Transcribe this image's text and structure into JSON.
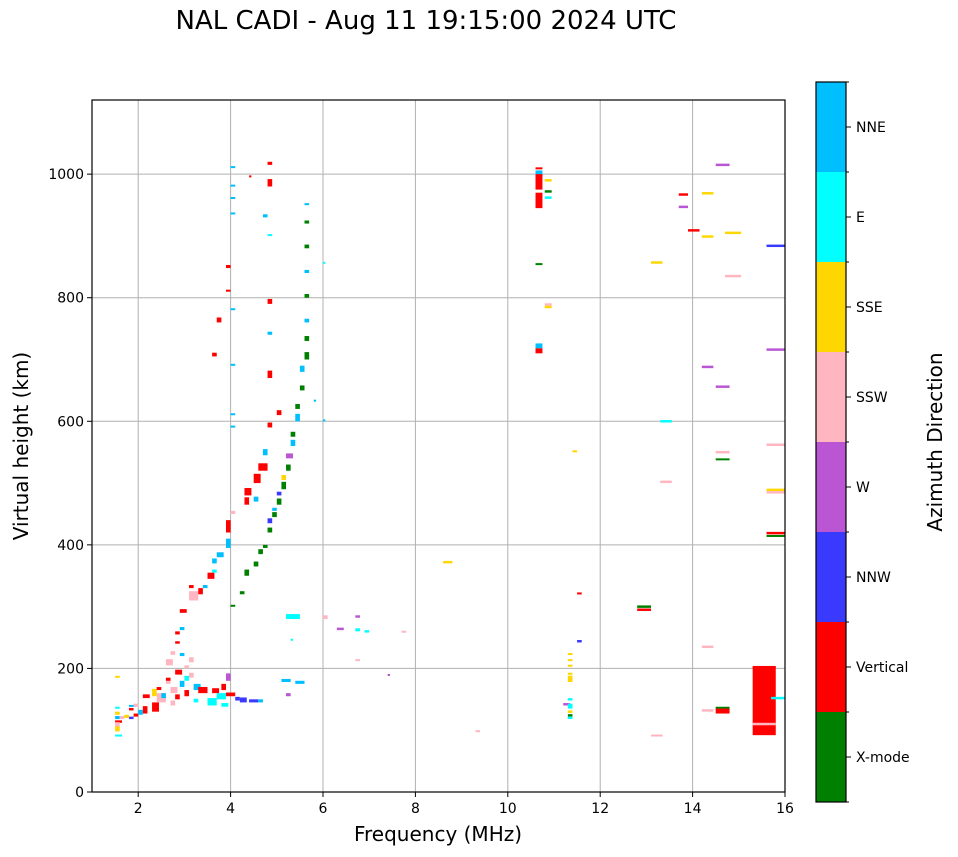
{
  "chart_data": {
    "type": "scatter",
    "title": "NAL CADI - Aug 11 19:15:00 2024 UTC",
    "xlabel": "Frequency (MHz)",
    "ylabel": "Virtual height (km)",
    "xlim": [
      1,
      16
    ],
    "ylim": [
      0,
      1120
    ],
    "xticks": [
      2,
      4,
      6,
      8,
      10,
      12,
      14,
      16
    ],
    "yticks": [
      0,
      200,
      400,
      600,
      800,
      1000
    ],
    "grid": true,
    "colorbar": {
      "label": "Azimuth Direction",
      "placement": "right",
      "categories": [
        {
          "name": "X-mode",
          "color": "#008000"
        },
        {
          "name": "Vertical",
          "color": "#ff0000"
        },
        {
          "name": "NNW",
          "color": "#3a3aff"
        },
        {
          "name": "W",
          "color": "#ba55d3"
        },
        {
          "name": "SSW",
          "color": "#ffb6c1"
        },
        {
          "name": "SSE",
          "color": "#ffd700"
        },
        {
          "name": "E",
          "color": "#00ffff"
        },
        {
          "name": "NNE",
          "color": "#00bfff"
        }
      ]
    },
    "point_fields": [
      "frequency_mhz",
      "freq_width_mhz",
      "virtual_height_km",
      "height_span_km",
      "direction"
    ],
    "points": [
      [
        1.5,
        0.1,
        185,
        3,
        "SSE"
      ],
      [
        1.5,
        0.1,
        135,
        3,
        "E"
      ],
      [
        1.5,
        0.1,
        125,
        5,
        "SSE"
      ],
      [
        1.5,
        0.1,
        118,
        5,
        "NNE"
      ],
      [
        1.5,
        0.15,
        112,
        4,
        "Vertical"
      ],
      [
        1.5,
        0.1,
        105,
        8,
        "SSW"
      ],
      [
        1.5,
        0.1,
        98,
        8,
        "SSE"
      ],
      [
        1.5,
        0.15,
        90,
        3,
        "E"
      ],
      [
        1.6,
        0.1,
        118,
        5,
        "SSW"
      ],
      [
        1.7,
        0.1,
        120,
        5,
        "SSE"
      ],
      [
        1.8,
        0.15,
        138,
        3,
        "NNE"
      ],
      [
        1.8,
        0.1,
        132,
        4,
        "Vertical"
      ],
      [
        1.8,
        0.1,
        118,
        4,
        "NNW"
      ],
      [
        1.9,
        0.1,
        122,
        5,
        "Vertical"
      ],
      [
        1.9,
        0.1,
        138,
        5,
        "SSW"
      ],
      [
        2.0,
        0.1,
        125,
        8,
        "NNE"
      ],
      [
        2.1,
        0.15,
        152,
        6,
        "Vertical"
      ],
      [
        2.1,
        0.1,
        127,
        12,
        "Vertical"
      ],
      [
        2.3,
        0.15,
        130,
        15,
        "Vertical"
      ],
      [
        2.3,
        0.1,
        155,
        12,
        "SSE"
      ],
      [
        2.4,
        0.2,
        145,
        15,
        "SSW"
      ],
      [
        2.4,
        0.1,
        165,
        5,
        "Vertical"
      ],
      [
        2.5,
        0.1,
        152,
        8,
        "NNE"
      ],
      [
        2.6,
        0.1,
        175,
        8,
        "SSW"
      ],
      [
        2.6,
        0.15,
        205,
        10,
        "SSW"
      ],
      [
        2.6,
        0.1,
        180,
        5,
        "Vertical"
      ],
      [
        2.7,
        0.15,
        160,
        10,
        "SSW"
      ],
      [
        2.7,
        0.1,
        140,
        8,
        "SSW"
      ],
      [
        2.7,
        0.1,
        222,
        6,
        "SSW"
      ],
      [
        2.8,
        0.1,
        240,
        4,
        "Vertical"
      ],
      [
        2.8,
        0.1,
        255,
        5,
        "Vertical"
      ],
      [
        2.8,
        0.15,
        190,
        8,
        "Vertical"
      ],
      [
        2.8,
        0.1,
        150,
        8,
        "Vertical"
      ],
      [
        2.9,
        0.1,
        170,
        10,
        "NNE"
      ],
      [
        2.9,
        0.1,
        220,
        5,
        "NNE"
      ],
      [
        2.9,
        0.1,
        262,
        5,
        "NNE"
      ],
      [
        2.9,
        0.15,
        290,
        6,
        "Vertical"
      ],
      [
        3.0,
        0.1,
        180,
        8,
        "E"
      ],
      [
        3.0,
        0.1,
        200,
        5,
        "SSW"
      ],
      [
        3.0,
        0.1,
        155,
        10,
        "Vertical"
      ],
      [
        3.1,
        0.1,
        185,
        8,
        "SSW"
      ],
      [
        3.1,
        0.1,
        210,
        8,
        "SSW"
      ],
      [
        3.1,
        0.2,
        310,
        15,
        "SSW"
      ],
      [
        3.1,
        0.1,
        330,
        5,
        "Vertical"
      ],
      [
        3.2,
        0.15,
        165,
        10,
        "NNE"
      ],
      [
        3.2,
        0.1,
        145,
        6,
        "E"
      ],
      [
        3.3,
        0.1,
        320,
        10,
        "Vertical"
      ],
      [
        3.3,
        0.2,
        160,
        10,
        "Vertical"
      ],
      [
        3.4,
        0.1,
        330,
        5,
        "NNE"
      ],
      [
        3.5,
        0.15,
        345,
        10,
        "Vertical"
      ],
      [
        3.5,
        0.2,
        140,
        12,
        "E"
      ],
      [
        3.6,
        0.15,
        160,
        8,
        "Vertical"
      ],
      [
        3.6,
        0.1,
        370,
        8,
        "NNE"
      ],
      [
        3.6,
        0.1,
        355,
        5,
        "E"
      ],
      [
        3.7,
        0.15,
        380,
        8,
        "NNE"
      ],
      [
        3.7,
        0.2,
        150,
        10,
        "E"
      ],
      [
        3.8,
        0.1,
        165,
        10,
        "Vertical"
      ],
      [
        3.8,
        0.15,
        138,
        6,
        "E"
      ],
      [
        3.9,
        0.1,
        180,
        12,
        "W"
      ],
      [
        3.9,
        0.2,
        155,
        6,
        "Vertical"
      ],
      [
        3.9,
        0.1,
        420,
        20,
        "Vertical"
      ],
      [
        3.9,
        0.1,
        395,
        15,
        "NNE"
      ],
      [
        4.0,
        0.1,
        300,
        3,
        "X-mode"
      ],
      [
        4.0,
        0.1,
        450,
        5,
        "SSW"
      ],
      [
        4.1,
        0.1,
        148,
        6,
        "NNW"
      ],
      [
        4.2,
        0.15,
        145,
        8,
        "NNW"
      ],
      [
        4.2,
        0.1,
        320,
        5,
        "X-mode"
      ],
      [
        4.3,
        0.1,
        350,
        10,
        "X-mode"
      ],
      [
        4.3,
        0.1,
        465,
        12,
        "Vertical"
      ],
      [
        4.3,
        0.15,
        480,
        12,
        "Vertical"
      ],
      [
        4.4,
        0.2,
        145,
        5,
        "NNW"
      ],
      [
        4.5,
        0.1,
        470,
        8,
        "NNE"
      ],
      [
        4.5,
        0.15,
        500,
        15,
        "Vertical"
      ],
      [
        4.5,
        0.1,
        365,
        8,
        "X-mode"
      ],
      [
        4.6,
        0.2,
        520,
        12,
        "Vertical"
      ],
      [
        4.6,
        0.1,
        145,
        5,
        "NNE"
      ],
      [
        4.6,
        0.1,
        385,
        8,
        "X-mode"
      ],
      [
        4.7,
        0.1,
        545,
        10,
        "NNE"
      ],
      [
        4.7,
        0.1,
        395,
        5,
        "X-mode"
      ],
      [
        4.8,
        0.1,
        420,
        8,
        "X-mode"
      ],
      [
        4.8,
        0.1,
        435,
        8,
        "NNW"
      ],
      [
        4.8,
        0.1,
        590,
        8,
        "Vertical"
      ],
      [
        4.9,
        0.1,
        445,
        8,
        "X-mode"
      ],
      [
        4.9,
        0.1,
        455,
        5,
        "NNE"
      ],
      [
        5.0,
        0.1,
        465,
        10,
        "X-mode"
      ],
      [
        5.0,
        0.1,
        480,
        6,
        "NNW"
      ],
      [
        5.0,
        0.1,
        610,
        8,
        "Vertical"
      ],
      [
        5.1,
        0.1,
        490,
        12,
        "X-mode"
      ],
      [
        5.1,
        0.1,
        505,
        8,
        "SSE"
      ],
      [
        5.2,
        0.1,
        520,
        10,
        "X-mode"
      ],
      [
        5.2,
        0.15,
        540,
        8,
        "W"
      ],
      [
        5.2,
        0.1,
        155,
        5,
        "W"
      ],
      [
        5.3,
        0.1,
        560,
        10,
        "NNE"
      ],
      [
        5.3,
        0.1,
        575,
        8,
        "X-mode"
      ],
      [
        5.4,
        0.1,
        600,
        12,
        "NNE"
      ],
      [
        5.4,
        0.1,
        620,
        8,
        "X-mode"
      ],
      [
        5.5,
        0.1,
        650,
        8,
        "X-mode"
      ],
      [
        5.5,
        0.1,
        680,
        10,
        "NNE"
      ],
      [
        5.6,
        0.1,
        700,
        12,
        "X-mode"
      ],
      [
        5.6,
        0.1,
        730,
        8,
        "X-mode"
      ],
      [
        5.6,
        0.1,
        760,
        6,
        "NNE"
      ],
      [
        5.6,
        0.1,
        800,
        6,
        "X-mode"
      ],
      [
        5.6,
        0.1,
        840,
        5,
        "NNE"
      ],
      [
        5.6,
        0.1,
        880,
        6,
        "X-mode"
      ],
      [
        5.6,
        0.1,
        920,
        5,
        "X-mode"
      ],
      [
        5.6,
        0.1,
        950,
        3,
        "NNE"
      ],
      [
        5.2,
        0.3,
        280,
        8,
        "E"
      ],
      [
        5.1,
        0.2,
        178,
        5,
        "NNE"
      ],
      [
        5.4,
        0.2,
        175,
        5,
        "NNE"
      ],
      [
        5.3,
        0.05,
        245,
        3,
        "E"
      ],
      [
        6.0,
        0.1,
        280,
        6,
        "SSW"
      ],
      [
        6.0,
        0.05,
        600,
        3,
        "NNE"
      ],
      [
        6.0,
        0.05,
        855,
        3,
        "E"
      ],
      [
        5.8,
        0.05,
        632,
        3,
        "NNE"
      ],
      [
        4.0,
        0.1,
        1010,
        3,
        "NNE"
      ],
      [
        4.0,
        0.1,
        980,
        3,
        "NNE"
      ],
      [
        4.0,
        0.1,
        960,
        3,
        "NNE"
      ],
      [
        4.0,
        0.1,
        935,
        3,
        "NNE"
      ],
      [
        4.0,
        0.1,
        780,
        3,
        "NNE"
      ],
      [
        4.0,
        0.1,
        690,
        3,
        "NNE"
      ],
      [
        4.0,
        0.1,
        610,
        3,
        "NNE"
      ],
      [
        4.0,
        0.1,
        590,
        3,
        "NNE"
      ],
      [
        4.4,
        0.05,
        995,
        3,
        "Vertical"
      ],
      [
        4.8,
        0.1,
        1015,
        5,
        "Vertical"
      ],
      [
        4.8,
        0.1,
        980,
        12,
        "Vertical"
      ],
      [
        4.8,
        0.1,
        790,
        8,
        "Vertical"
      ],
      [
        4.8,
        0.1,
        740,
        5,
        "NNE"
      ],
      [
        4.8,
        0.1,
        670,
        12,
        "Vertical"
      ],
      [
        3.9,
        0.1,
        848,
        5,
        "Vertical"
      ],
      [
        3.9,
        0.1,
        810,
        3,
        "Vertical"
      ],
      [
        3.7,
        0.1,
        760,
        8,
        "Vertical"
      ],
      [
        3.6,
        0.1,
        705,
        6,
        "Vertical"
      ],
      [
        4.7,
        0.1,
        930,
        5,
        "NNE"
      ],
      [
        4.8,
        0.1,
        900,
        3,
        "Cyan"
      ],
      [
        6.3,
        0.15,
        262,
        4,
        "W"
      ],
      [
        6.7,
        0.1,
        282,
        4,
        "W"
      ],
      [
        6.7,
        0.1,
        260,
        5,
        "E"
      ],
      [
        6.9,
        0.1,
        258,
        4,
        "E"
      ],
      [
        6.7,
        0.1,
        212,
        3,
        "SSW"
      ],
      [
        7.7,
        0.1,
        258,
        3,
        "SSW"
      ],
      [
        7.4,
        0.05,
        188,
        3,
        "W"
      ],
      [
        9.3,
        0.1,
        98,
        2,
        "SSW"
      ],
      [
        8.6,
        0.2,
        370,
        4,
        "SSE"
      ],
      [
        10.6,
        0.15,
        1008,
        3,
        "Vertical"
      ],
      [
        10.6,
        0.15,
        998,
        8,
        "NNE"
      ],
      [
        10.6,
        0.15,
        975,
        25,
        "Vertical"
      ],
      [
        10.8,
        0.15,
        988,
        4,
        "SSE"
      ],
      [
        10.8,
        0.15,
        970,
        4,
        "X-mode"
      ],
      [
        10.8,
        0.15,
        960,
        4,
        "E"
      ],
      [
        10.6,
        0.15,
        945,
        25,
        "Vertical"
      ],
      [
        10.6,
        0.15,
        853,
        3,
        "X-mode"
      ],
      [
        10.8,
        0.15,
        787,
        4,
        "SSW"
      ],
      [
        10.8,
        0.15,
        783,
        4,
        "SSE"
      ],
      [
        10.6,
        0.15,
        718,
        8,
        "NNE"
      ],
      [
        10.6,
        0.15,
        710,
        8,
        "Vertical"
      ],
      [
        11.4,
        0.1,
        550,
        3,
        "SSE"
      ],
      [
        11.5,
        0.1,
        320,
        3,
        "Vertical"
      ],
      [
        11.5,
        0.1,
        242,
        4,
        "NNW"
      ],
      [
        11.3,
        0.1,
        222,
        3,
        "SSE"
      ],
      [
        11.3,
        0.1,
        212,
        3,
        "SSE"
      ],
      [
        11.3,
        0.1,
        203,
        3,
        "SSE"
      ],
      [
        11.3,
        0.1,
        190,
        3,
        "SSE"
      ],
      [
        11.3,
        0.1,
        185,
        3,
        "SSE"
      ],
      [
        11.3,
        0.1,
        178,
        10,
        "SSE"
      ],
      [
        11.3,
        0.1,
        148,
        4,
        "E"
      ],
      [
        11.2,
        0.15,
        140,
        4,
        "W"
      ],
      [
        11.3,
        0.1,
        135,
        8,
        "E"
      ],
      [
        11.3,
        0.1,
        128,
        4,
        "SSE"
      ],
      [
        11.3,
        0.1,
        122,
        4,
        "X-mode"
      ],
      [
        11.3,
        0.1,
        118,
        4,
        "E"
      ],
      [
        12.8,
        0.3,
        298,
        4,
        "X-mode"
      ],
      [
        12.8,
        0.3,
        293,
        4,
        "Vertical"
      ],
      [
        13.1,
        0.25,
        855,
        4,
        "SSE"
      ],
      [
        13.3,
        0.25,
        598,
        4,
        "E"
      ],
      [
        13.3,
        0.25,
        500,
        4,
        "SSW"
      ],
      [
        13.1,
        0.25,
        90,
        3,
        "SSW"
      ],
      [
        13.7,
        0.2,
        965,
        4,
        "Vertical"
      ],
      [
        13.7,
        0.2,
        945,
        4,
        "W"
      ],
      [
        13.9,
        0.25,
        907,
        4,
        "Vertical"
      ],
      [
        14.2,
        0.25,
        967,
        4,
        "SSE"
      ],
      [
        14.2,
        0.25,
        897,
        4,
        "SSE"
      ],
      [
        14.5,
        0.3,
        1013,
        4,
        "W"
      ],
      [
        14.7,
        0.35,
        903,
        4,
        "SSE"
      ],
      [
        14.7,
        0.35,
        833,
        4,
        "SSW"
      ],
      [
        14.2,
        0.25,
        686,
        4,
        "W"
      ],
      [
        14.5,
        0.3,
        654,
        4,
        "W"
      ],
      [
        14.5,
        0.3,
        548,
        4,
        "SSW"
      ],
      [
        14.5,
        0.3,
        537,
        3,
        "X-mode"
      ],
      [
        14.2,
        0.25,
        233,
        4,
        "SSW"
      ],
      [
        14.2,
        0.25,
        130,
        4,
        "SSW"
      ],
      [
        14.5,
        0.3,
        133,
        5,
        "X-mode"
      ],
      [
        14.5,
        0.3,
        127,
        8,
        "Vertical"
      ],
      [
        15.3,
        0.5,
        92,
        110,
        "Vertical"
      ],
      [
        15.3,
        0.5,
        200,
        4,
        "Vertical"
      ],
      [
        15.3,
        0.5,
        108,
        4,
        "SSW"
      ],
      [
        15.6,
        0.4,
        882,
        4,
        "NNW"
      ],
      [
        15.6,
        0.4,
        714,
        4,
        "W"
      ],
      [
        15.6,
        0.4,
        560,
        4,
        "SSW"
      ],
      [
        15.6,
        0.4,
        487,
        4,
        "SSE"
      ],
      [
        15.6,
        0.4,
        483,
        4,
        "SSW"
      ],
      [
        15.6,
        0.4,
        417,
        4,
        "Vertical"
      ],
      [
        15.6,
        0.4,
        413,
        3,
        "X-mode"
      ],
      [
        15.7,
        0.3,
        150,
        4,
        "E"
      ]
    ]
  }
}
